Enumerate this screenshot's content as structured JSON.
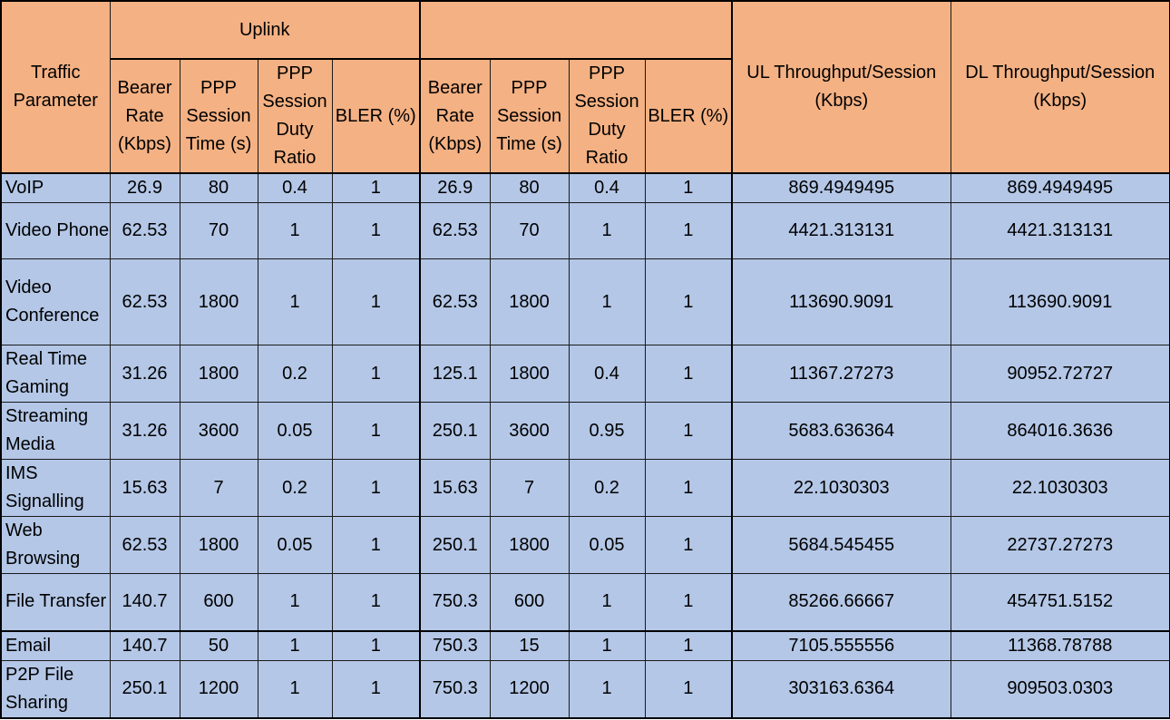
{
  "header": {
    "traffic_parameter": "Traffic Parameter",
    "uplink": "Uplink",
    "downlink": "",
    "bearer_rate": "Bearer Rate (Kbps)",
    "ppp_session_time": "PPP Session Time (s)",
    "ppp_duty_ratio": "PPP Session Duty Ratio",
    "bler": "BLER (%)",
    "ul_throughput": "UL Throughput/Session (Kbps)",
    "dl_throughput": "DL Throughput/Session (Kbps)"
  },
  "rows": [
    {
      "name": "VoIP",
      "ul_rate": "26.9",
      "ul_time": "80",
      "ul_duty": "0.4",
      "ul_bler": "1",
      "dl_rate": "26.9",
      "dl_time": "80",
      "dl_duty": "0.4",
      "dl_bler": "1",
      "ul_tp": "869.4949495",
      "dl_tp": "869.4949495"
    },
    {
      "name": "Video Phone",
      "ul_rate": "62.53",
      "ul_time": "70",
      "ul_duty": "1",
      "ul_bler": "1",
      "dl_rate": "62.53",
      "dl_time": "70",
      "dl_duty": "1",
      "dl_bler": "1",
      "ul_tp": "4421.313131",
      "dl_tp": "4421.313131"
    },
    {
      "name": "Video Conference",
      "ul_rate": "62.53",
      "ul_time": "1800",
      "ul_duty": "1",
      "ul_bler": "1",
      "dl_rate": "62.53",
      "dl_time": "1800",
      "dl_duty": "1",
      "dl_bler": "1",
      "ul_tp": "113690.9091",
      "dl_tp": "113690.9091"
    },
    {
      "name": "Real Time Gaming",
      "ul_rate": "31.26",
      "ul_time": "1800",
      "ul_duty": "0.2",
      "ul_bler": "1",
      "dl_rate": "125.1",
      "dl_time": "1800",
      "dl_duty": "0.4",
      "dl_bler": "1",
      "ul_tp": "11367.27273",
      "dl_tp": "90952.72727"
    },
    {
      "name": "Streaming Media",
      "ul_rate": "31.26",
      "ul_time": "3600",
      "ul_duty": "0.05",
      "ul_bler": "1",
      "dl_rate": "250.1",
      "dl_time": "3600",
      "dl_duty": "0.95",
      "dl_bler": "1",
      "ul_tp": "5683.636364",
      "dl_tp": "864016.3636"
    },
    {
      "name": "IMS Signalling",
      "ul_rate": "15.63",
      "ul_time": "7",
      "ul_duty": "0.2",
      "ul_bler": "1",
      "dl_rate": "15.63",
      "dl_time": "7",
      "dl_duty": "0.2",
      "dl_bler": "1",
      "ul_tp": "22.1030303",
      "dl_tp": "22.1030303"
    },
    {
      "name": "Web Browsing",
      "ul_rate": "62.53",
      "ul_time": "1800",
      "ul_duty": "0.05",
      "ul_bler": "1",
      "dl_rate": "250.1",
      "dl_time": "1800",
      "dl_duty": "0.05",
      "dl_bler": "1",
      "ul_tp": "5684.545455",
      "dl_tp": "22737.27273"
    },
    {
      "name": "File Transfer",
      "ul_rate": "140.7",
      "ul_time": "600",
      "ul_duty": "1",
      "ul_bler": "1",
      "dl_rate": "750.3",
      "dl_time": "600",
      "dl_duty": "1",
      "dl_bler": "1",
      "ul_tp": "85266.66667",
      "dl_tp": "454751.5152"
    },
    {
      "name": "Email",
      "ul_rate": "140.7",
      "ul_time": "50",
      "ul_duty": "1",
      "ul_bler": "1",
      "dl_rate": "750.3",
      "dl_time": "15",
      "dl_duty": "1",
      "dl_bler": "1",
      "ul_tp": "7105.555556",
      "dl_tp": "11368.78788"
    },
    {
      "name": "P2P File Sharing",
      "ul_rate": "250.1",
      "ul_time": "1200",
      "ul_duty": "1",
      "ul_bler": "1",
      "dl_rate": "750.3",
      "dl_time": "1200",
      "dl_duty": "1",
      "dl_bler": "1",
      "ul_tp": "303163.6364",
      "dl_tp": "909503.0303"
    }
  ]
}
